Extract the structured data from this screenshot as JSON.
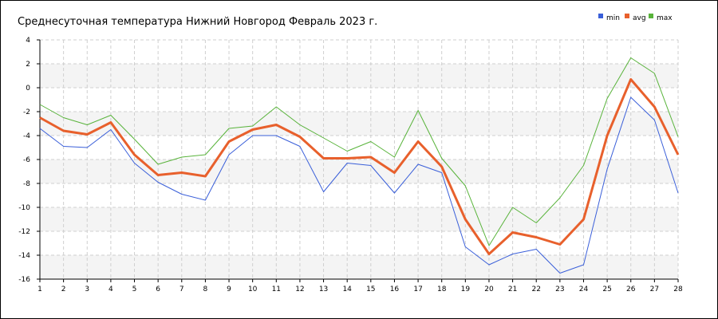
{
  "chart_data": {
    "type": "line",
    "title": "Среднесуточная температура Нижний Новгород  Февраль 2023 г.",
    "xlabel": "",
    "ylabel": "",
    "x": [
      1,
      2,
      3,
      4,
      5,
      6,
      7,
      8,
      9,
      10,
      11,
      12,
      13,
      14,
      15,
      16,
      17,
      18,
      19,
      20,
      21,
      22,
      23,
      24,
      25,
      26,
      27,
      28
    ],
    "ylim": [
      -16,
      4
    ],
    "yticks": [
      4,
      2,
      0,
      -2,
      -4,
      -6,
      -8,
      -10,
      -12,
      -14,
      -16
    ],
    "grid": true,
    "legend_position": "top-right",
    "series": [
      {
        "name": "min",
        "color": "#3a5fd9",
        "values": [
          -3.4,
          -4.9,
          -5.0,
          -3.5,
          -6.3,
          -7.9,
          -8.9,
          -9.4,
          -5.6,
          -4.0,
          -4.0,
          -4.9,
          -8.7,
          -6.3,
          -6.5,
          -8.8,
          -6.4,
          -7.1,
          -13.3,
          -14.8,
          -13.9,
          -13.5,
          -15.5,
          -14.8,
          -6.8,
          -0.8,
          -2.7,
          -8.8
        ]
      },
      {
        "name": "avg",
        "color": "#e8602c",
        "values": [
          -2.5,
          -3.6,
          -3.9,
          -2.9,
          -5.6,
          -7.3,
          -7.1,
          -7.4,
          -4.5,
          -3.5,
          -3.1,
          -4.1,
          -5.9,
          -5.9,
          -5.8,
          -7.1,
          -4.5,
          -6.6,
          -11.0,
          -13.9,
          -12.1,
          -12.5,
          -13.1,
          -11.0,
          -4.0,
          0.7,
          -1.6,
          -5.6
        ]
      },
      {
        "name": "max",
        "color": "#58b33a",
        "values": [
          -1.4,
          -2.5,
          -3.1,
          -2.3,
          -4.3,
          -6.4,
          -5.8,
          -5.6,
          -3.4,
          -3.2,
          -1.6,
          -3.1,
          -4.2,
          -5.3,
          -4.5,
          -5.8,
          -1.9,
          -5.9,
          -8.2,
          -13.2,
          -10.0,
          -11.3,
          -9.2,
          -6.5,
          -0.9,
          2.5,
          1.2,
          -4.1
        ]
      }
    ]
  }
}
